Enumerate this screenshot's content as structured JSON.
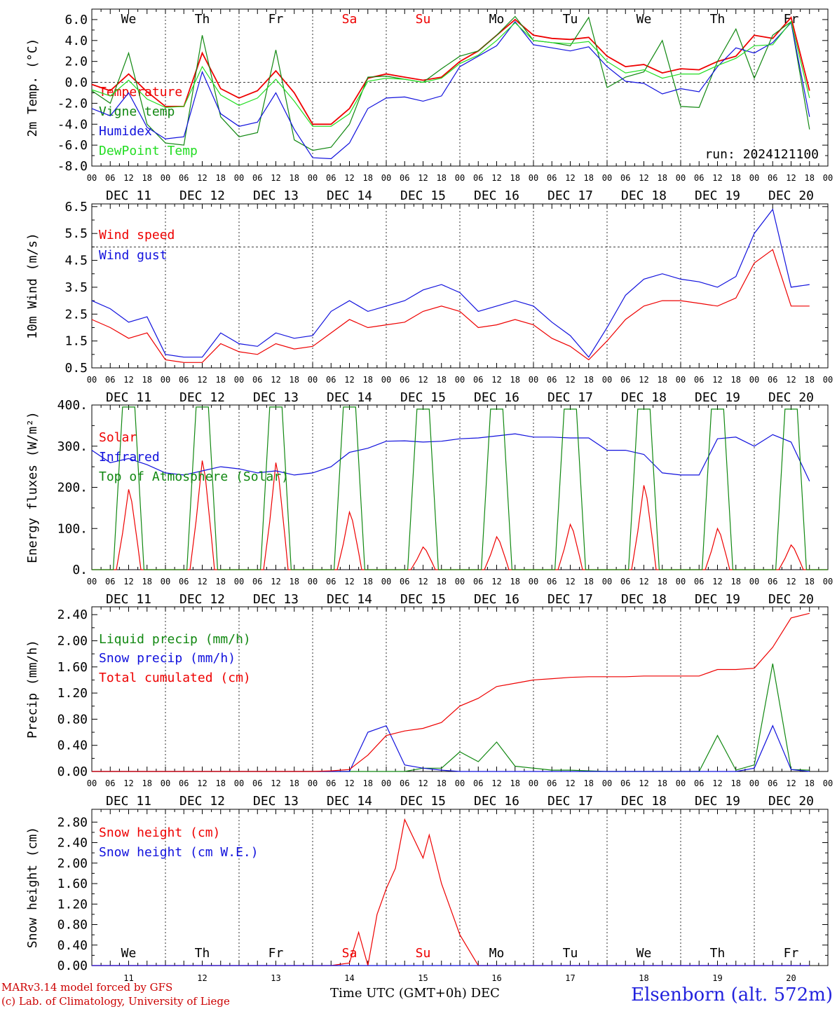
{
  "colors": {
    "red": "#ee0000",
    "green": "#118811",
    "blue": "#1111dd",
    "lightgreen": "#22dd22",
    "wkend": "#ee0000"
  },
  "weekdays": [
    "We",
    "Th",
    "Fr",
    "Sa",
    "Su",
    "Mo",
    "Tu",
    "We",
    "Th",
    "Fr"
  ],
  "weekend_days": [
    "Sa",
    "Su"
  ],
  "hour_labels": [
    "00",
    "06",
    "12",
    "18"
  ],
  "date_labels": [
    "DEC 11",
    "DEC 12",
    "DEC 13",
    "DEC 14",
    "DEC 15",
    "DEC 16",
    "DEC 17",
    "DEC 18",
    "DEC 19",
    "DEC 20"
  ],
  "bottom_day_numbers": [
    "11",
    "12",
    "13",
    "14",
    "15",
    "16",
    "17",
    "18",
    "19",
    "20"
  ],
  "run_label": "run: 2024121100",
  "footer": {
    "model": "MARv3.14 model forced by GFS",
    "copyright": "(c) Lab. of Climatology, University of Liege",
    "xlabel": "Time UTC (GMT+0h) DEC",
    "station": "Elsenborn (alt. 572m)"
  },
  "chart_data": [
    {
      "type": "line",
      "ylabel": "2m Temp. (°C)",
      "ylim": [
        -8,
        7
      ],
      "yticks": [
        "6.0",
        "4.0",
        "2.0",
        "0.0",
        "-2.0",
        "-4.0",
        "-6.0",
        "-8.0"
      ],
      "hline": 0,
      "x_unit": "hours since DEC 11 00 UTC",
      "series": [
        {
          "name": "Temperature",
          "color": "red",
          "x": [
            0,
            6,
            12,
            18,
            24,
            30,
            36,
            42,
            48,
            54,
            60,
            66,
            72,
            78,
            84,
            90,
            96,
            102,
            108,
            114,
            120,
            126,
            132,
            138,
            144,
            150,
            156,
            162,
            168,
            174,
            180,
            186,
            192,
            198,
            204,
            210,
            216,
            222,
            228,
            234
          ],
          "y": [
            -0.2,
            -0.8,
            0.8,
            -0.9,
            -2.3,
            -2.3,
            2.8,
            -0.6,
            -1.5,
            -0.8,
            1.1,
            -1.0,
            -4.0,
            -4.0,
            -2.5,
            0.4,
            0.8,
            0.5,
            0.2,
            0.5,
            2.0,
            3.0,
            4.5,
            6.0,
            4.5,
            4.2,
            4.1,
            4.3,
            2.5,
            1.5,
            1.7,
            0.9,
            1.3,
            1.2,
            2.0,
            2.5,
            4.5,
            4.2,
            6.2,
            -0.8
          ]
        },
        {
          "name": "Vigne temp",
          "color": "green",
          "x": [
            0,
            6,
            12,
            18,
            24,
            30,
            36,
            42,
            48,
            54,
            60,
            66,
            72,
            78,
            84,
            90,
            96,
            102,
            108,
            114,
            120,
            126,
            132,
            138,
            144,
            150,
            156,
            162,
            168,
            174,
            180,
            186,
            192,
            198,
            204,
            210,
            216,
            222,
            228,
            234
          ],
          "y": [
            -0.8,
            -2.0,
            2.8,
            -4.0,
            -5.8,
            -6.0,
            4.5,
            -3.3,
            -5.2,
            -4.8,
            3.1,
            -5.5,
            -6.5,
            -6.2,
            -4.0,
            0.5,
            0.6,
            0.3,
            0.0,
            1.3,
            2.5,
            3.0,
            4.5,
            6.3,
            4.0,
            3.8,
            3.5,
            6.2,
            -0.5,
            0.5,
            1.0,
            4.0,
            -2.3,
            -2.4,
            2.0,
            5.1,
            0.4,
            4.5,
            5.8,
            -4.5
          ]
        },
        {
          "name": "Humidex",
          "color": "blue",
          "x": [
            0,
            6,
            12,
            18,
            24,
            30,
            36,
            42,
            48,
            54,
            60,
            66,
            72,
            78,
            84,
            90,
            96,
            102,
            108,
            114,
            120,
            126,
            132,
            138,
            144,
            150,
            156,
            162,
            168,
            174,
            180,
            186,
            192,
            198,
            204,
            210,
            216,
            222,
            228,
            234
          ],
          "y": [
            -2.5,
            -3.2,
            -1.0,
            -4.3,
            -5.4,
            -5.2,
            1.0,
            -3.0,
            -4.2,
            -3.8,
            -1.0,
            -4.5,
            -7.2,
            -7.3,
            -5.8,
            -2.5,
            -1.5,
            -1.4,
            -1.8,
            -1.3,
            1.5,
            2.5,
            3.5,
            5.8,
            3.6,
            3.3,
            3.0,
            3.4,
            1.5,
            0.1,
            -0.1,
            -1.1,
            -0.6,
            -0.9,
            1.5,
            3.3,
            2.8,
            3.8,
            5.7,
            -3.3
          ]
        },
        {
          "name": "DewPoint Temp",
          "color": "lightgreen",
          "x": [
            0,
            6,
            12,
            18,
            24,
            30,
            36,
            42,
            48,
            54,
            60,
            66,
            72,
            78,
            84,
            90,
            96,
            102,
            108,
            114,
            120,
            126,
            132,
            138,
            144,
            150,
            156,
            162,
            168,
            174,
            180,
            186,
            192,
            198,
            204,
            210,
            216,
            222,
            228,
            234
          ],
          "y": [
            -0.7,
            -1.3,
            0.2,
            -1.6,
            -2.4,
            -2.3,
            1.5,
            -1.2,
            -2.2,
            -1.5,
            0.3,
            -1.8,
            -4.2,
            -4.2,
            -3.0,
            0.1,
            0.4,
            0.3,
            0.0,
            0.4,
            1.8,
            2.6,
            4.0,
            5.7,
            4.0,
            3.8,
            3.7,
            3.9,
            2.0,
            0.9,
            1.2,
            0.4,
            0.8,
            0.8,
            1.6,
            2.3,
            3.5,
            3.6,
            5.8,
            -1.5
          ]
        }
      ]
    },
    {
      "type": "line",
      "ylabel": "10m Wind (m/s)",
      "ylim": [
        0.5,
        6.6
      ],
      "yticks": [
        "6.5",
        "5.5",
        "4.5",
        "3.5",
        "2.5",
        "1.5",
        "0.5"
      ],
      "hline": 5.0,
      "x_unit": "hours since DEC 11 00 UTC",
      "series": [
        {
          "name": "Wind speed",
          "color": "red",
          "x": [
            0,
            6,
            12,
            18,
            24,
            30,
            36,
            42,
            48,
            54,
            60,
            66,
            72,
            78,
            84,
            90,
            96,
            102,
            108,
            114,
            120,
            126,
            132,
            138,
            144,
            150,
            156,
            162,
            168,
            174,
            180,
            186,
            192,
            198,
            204,
            210,
            216,
            222,
            228,
            234
          ],
          "y": [
            2.3,
            2.0,
            1.6,
            1.8,
            0.8,
            0.7,
            0.7,
            1.4,
            1.1,
            1.0,
            1.4,
            1.2,
            1.3,
            1.8,
            2.3,
            2.0,
            2.1,
            2.2,
            2.6,
            2.8,
            2.6,
            2.0,
            2.1,
            2.3,
            2.1,
            1.6,
            1.3,
            0.8,
            1.5,
            2.3,
            2.8,
            3.0,
            3.0,
            2.9,
            2.8,
            3.1,
            4.4,
            4.9,
            2.8,
            2.8
          ]
        },
        {
          "name": "Wind gust",
          "color": "blue",
          "x": [
            0,
            6,
            12,
            18,
            24,
            30,
            36,
            42,
            48,
            54,
            60,
            66,
            72,
            78,
            84,
            90,
            96,
            102,
            108,
            114,
            120,
            126,
            132,
            138,
            144,
            150,
            156,
            162,
            168,
            174,
            180,
            186,
            192,
            198,
            204,
            210,
            216,
            222,
            228,
            234
          ],
          "y": [
            3.0,
            2.7,
            2.2,
            2.4,
            1.0,
            0.9,
            0.9,
            1.8,
            1.4,
            1.3,
            1.8,
            1.6,
            1.7,
            2.6,
            3.0,
            2.6,
            2.8,
            3.0,
            3.4,
            3.6,
            3.3,
            2.6,
            2.8,
            3.0,
            2.8,
            2.2,
            1.7,
            0.9,
            2.0,
            3.2,
            3.8,
            4.0,
            3.8,
            3.7,
            3.5,
            3.9,
            5.5,
            6.4,
            3.5,
            3.6
          ]
        }
      ]
    },
    {
      "type": "line",
      "ylabel": "Energy fluxes (W/m²)",
      "ylim": [
        0,
        400
      ],
      "yticks": [
        "400.",
        "300.",
        "200.",
        "100.",
        "0."
      ],
      "x_unit": "hours since DEC 11 00 UTC",
      "series": [
        {
          "name": "Solar",
          "color": "red",
          "peaks": [
            195,
            265,
            260,
            140,
            55,
            80,
            110,
            205,
            100,
            60
          ]
        },
        {
          "name": "Infrared",
          "color": "blue",
          "x": [
            0,
            6,
            12,
            18,
            24,
            30,
            36,
            42,
            48,
            54,
            60,
            66,
            72,
            78,
            84,
            90,
            96,
            102,
            108,
            114,
            120,
            126,
            132,
            138,
            144,
            150,
            156,
            162,
            168,
            174,
            180,
            186,
            192,
            198,
            204,
            210,
            216,
            222,
            228,
            234
          ],
          "y": [
            290,
            260,
            270,
            255,
            235,
            230,
            240,
            250,
            245,
            235,
            240,
            230,
            235,
            250,
            285,
            295,
            312,
            313,
            310,
            312,
            318,
            320,
            325,
            330,
            322,
            322,
            320,
            320,
            290,
            290,
            280,
            235,
            230,
            230,
            318,
            322,
            300,
            328,
            310,
            215
          ]
        },
        {
          "name": "Top of Atmosphere (Solar)",
          "color": "green",
          "peaks": [
            395,
            395,
            395,
            395,
            390,
            390,
            390,
            390,
            390,
            390
          ]
        }
      ]
    },
    {
      "type": "line",
      "ylabel": "Precip (mm/h)",
      "ylim": [
        0,
        2.52
      ],
      "yticks": [
        "2.40",
        "2.00",
        "1.60",
        "1.20",
        "0.80",
        "0.40",
        "0.00"
      ],
      "x_unit": "hours since DEC 11 00 UTC",
      "series": [
        {
          "name": "Liquid precip (mm/h)",
          "color": "green",
          "x": [
            0,
            6,
            12,
            18,
            24,
            30,
            36,
            42,
            48,
            54,
            60,
            66,
            72,
            78,
            84,
            90,
            96,
            102,
            108,
            114,
            120,
            126,
            132,
            138,
            144,
            150,
            156,
            162,
            168,
            174,
            180,
            186,
            192,
            198,
            204,
            210,
            216,
            222,
            228,
            234
          ],
          "y": [
            0,
            0,
            0,
            0,
            0,
            0,
            0,
            0,
            0,
            0,
            0,
            0,
            0,
            0,
            0,
            0,
            0,
            0,
            0.05,
            0.05,
            0.3,
            0.15,
            0.45,
            0.08,
            0.05,
            0.02,
            0.02,
            0.01,
            0,
            0,
            0,
            0,
            0,
            0,
            0.55,
            0.02,
            0.1,
            1.65,
            0.03,
            0.02
          ]
        },
        {
          "name": "Snow precip (mm/h)",
          "color": "blue",
          "x": [
            0,
            6,
            12,
            18,
            24,
            30,
            36,
            42,
            48,
            54,
            60,
            66,
            72,
            78,
            84,
            90,
            96,
            102,
            108,
            114,
            120,
            126,
            132,
            138,
            144,
            150,
            156,
            162,
            168,
            174,
            180,
            186,
            192,
            198,
            204,
            210,
            216,
            222,
            228,
            234
          ],
          "y": [
            0,
            0,
            0,
            0,
            0,
            0,
            0,
            0,
            0,
            0,
            0,
            0,
            0,
            0,
            0,
            0.6,
            0.7,
            0.1,
            0.05,
            0.02,
            0,
            0,
            0,
            0,
            0,
            0,
            0,
            0,
            0,
            0,
            0,
            0,
            0,
            0,
            0,
            0,
            0.05,
            0.7,
            0.03,
            0
          ]
        },
        {
          "name": "Total cumulated (cm)",
          "color": "red",
          "x": [
            0,
            6,
            12,
            18,
            24,
            30,
            36,
            42,
            48,
            54,
            60,
            66,
            72,
            78,
            84,
            90,
            96,
            102,
            108,
            114,
            120,
            126,
            132,
            138,
            144,
            150,
            156,
            162,
            168,
            174,
            180,
            186,
            192,
            198,
            204,
            210,
            216,
            222,
            228,
            234
          ],
          "y": [
            0,
            0,
            0,
            0,
            0,
            0,
            0,
            0,
            0,
            0,
            0,
            0,
            0,
            0.01,
            0.03,
            0.25,
            0.55,
            0.62,
            0.66,
            0.75,
            1.0,
            1.12,
            1.3,
            1.35,
            1.4,
            1.42,
            1.44,
            1.45,
            1.45,
            1.45,
            1.46,
            1.46,
            1.46,
            1.46,
            1.56,
            1.56,
            1.58,
            1.9,
            2.35,
            2.42
          ]
        }
      ]
    },
    {
      "type": "line",
      "ylabel": "Snow height (cm)",
      "ylim": [
        0,
        3.05
      ],
      "yticks": [
        "2.80",
        "2.40",
        "2.00",
        "1.60",
        "1.20",
        "0.80",
        "0.40",
        "0.00"
      ],
      "x_unit": "hours since DEC 11 00 UTC",
      "series": [
        {
          "name": "Snow height (cm)",
          "color": "red",
          "x": [
            0,
            78,
            84,
            87,
            90,
            93,
            96,
            99,
            102,
            104,
            108,
            110,
            114,
            120,
            126,
            130,
            234
          ],
          "y": [
            0,
            0,
            0.05,
            0.65,
            0,
            1.0,
            1.5,
            1.9,
            2.85,
            2.6,
            2.1,
            2.55,
            1.6,
            0.6,
            0,
            0,
            0
          ]
        },
        {
          "name": "Snow height (cm W.E.)",
          "color": "blue",
          "x": [
            0,
            234
          ],
          "y": [
            0,
            0
          ]
        }
      ]
    }
  ]
}
